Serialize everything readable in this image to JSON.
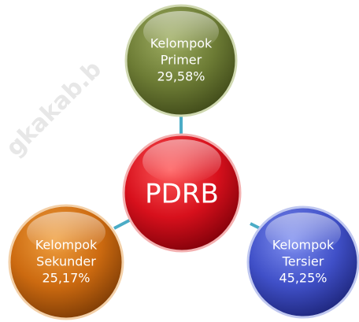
{
  "watermark": "gkakab.b",
  "center": {
    "label": "PDRB"
  },
  "nodes": [
    {
      "lines": [
        "Kelompok",
        "Primer",
        "29,58%"
      ]
    },
    {
      "lines": [
        "Kelompok",
        "Sekunder",
        "25,17%"
      ]
    },
    {
      "lines": [
        "Kelompok",
        "Tersier",
        "45,25%"
      ]
    }
  ]
}
